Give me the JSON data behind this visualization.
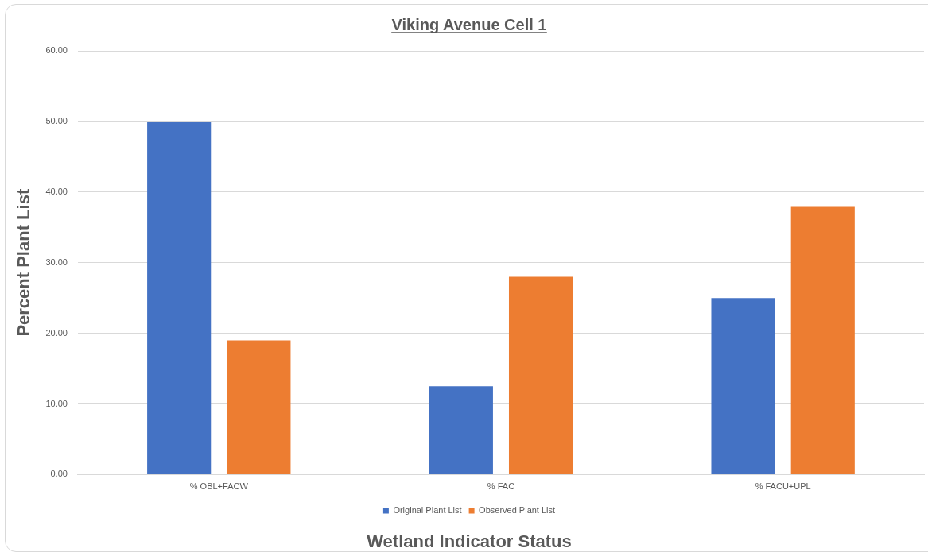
{
  "chart_data": {
    "type": "bar",
    "title": "Viking Avenue Cell 1",
    "xlabel": "Wetland Indicator Status",
    "ylabel": "Percent Plant List",
    "categories": [
      "% OBL+FACW",
      "% FAC",
      "% FACU+UPL"
    ],
    "series": [
      {
        "name": "Original Plant List",
        "color": "#4472c4",
        "values": [
          50,
          12.5,
          25
        ]
      },
      {
        "name": "Observed Plant List",
        "color": "#ed7d31",
        "values": [
          19,
          28,
          38
        ]
      }
    ],
    "ylim": [
      0,
      60
    ],
    "yticks": [
      {
        "value": 0,
        "label": "0.00"
      },
      {
        "value": 10,
        "label": "10.00"
      },
      {
        "value": 20,
        "label": "20.00"
      },
      {
        "value": 30,
        "label": "30.00"
      },
      {
        "value": 40,
        "label": "40.00"
      },
      {
        "value": 50,
        "label": "50.00"
      },
      {
        "value": 60,
        "label": "60.00"
      }
    ],
    "grid": "y",
    "legend": "bottom"
  }
}
